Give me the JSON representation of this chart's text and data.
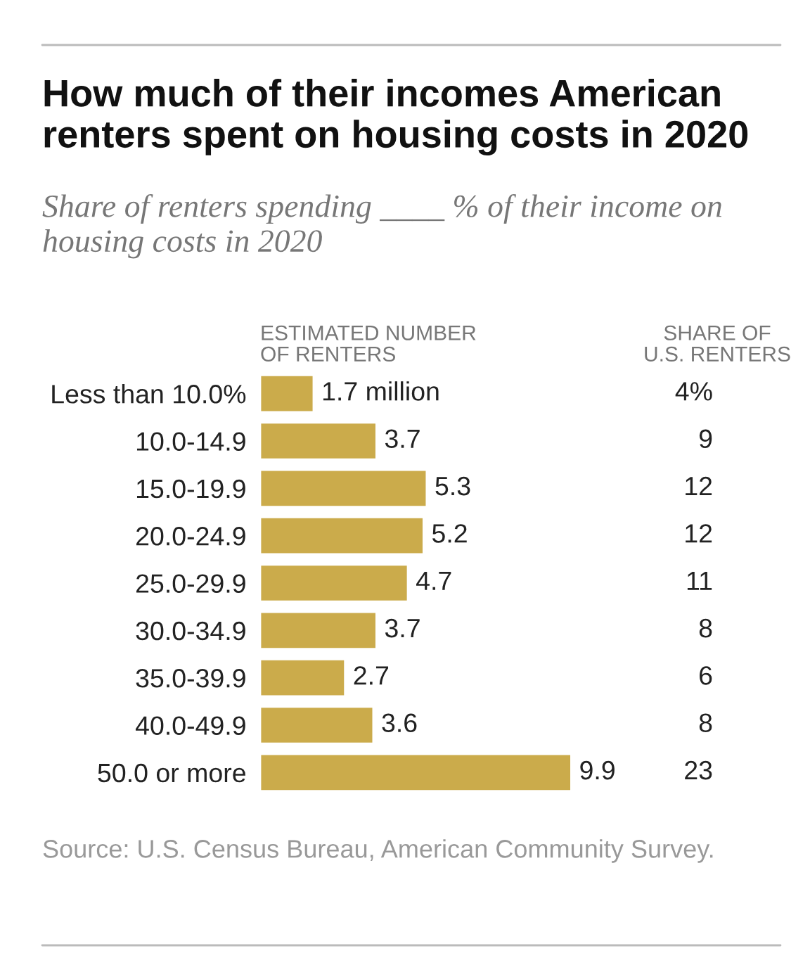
{
  "chart_data": {
    "type": "bar",
    "orientation": "horizontal",
    "title": "How much of their incomes American renters spent on housing costs in 2020",
    "subtitle": "Share of renters spending ____ % of their income on housing costs in 2020",
    "xlabel": "ESTIMATED NUMBER\nOF RENTERS",
    "categories": [
      "Less than 10.0%",
      "10.0-14.9",
      "15.0-19.9",
      "20.0-24.9",
      "25.0-29.9",
      "30.0-34.9",
      "35.0-39.9",
      "40.0-49.9",
      "50.0 or more"
    ],
    "values": [
      1.7,
      3.7,
      5.3,
      5.2,
      4.7,
      3.7,
      2.7,
      3.6,
      9.9
    ],
    "value_labels": [
      "1.7 million",
      "3.7",
      "5.3",
      "5.2",
      "4.7",
      "3.7",
      "2.7",
      "3.6",
      "9.9"
    ],
    "color": "#cbab4b",
    "grid": false,
    "annotations": [
      "SHARE OF\nU.S. RENTERS",
      "4%",
      "9",
      "12",
      "12",
      "11",
      "8",
      "6",
      "8",
      "23",
      "Source: U.S. Census Bureau, American Community Survey."
    ]
  }
}
